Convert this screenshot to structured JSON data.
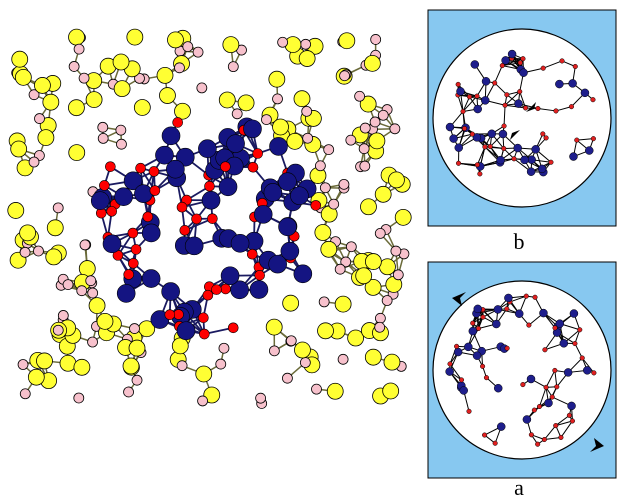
{
  "panels": [
    {
      "label": "b"
    },
    {
      "label": "a"
    }
  ]
}
